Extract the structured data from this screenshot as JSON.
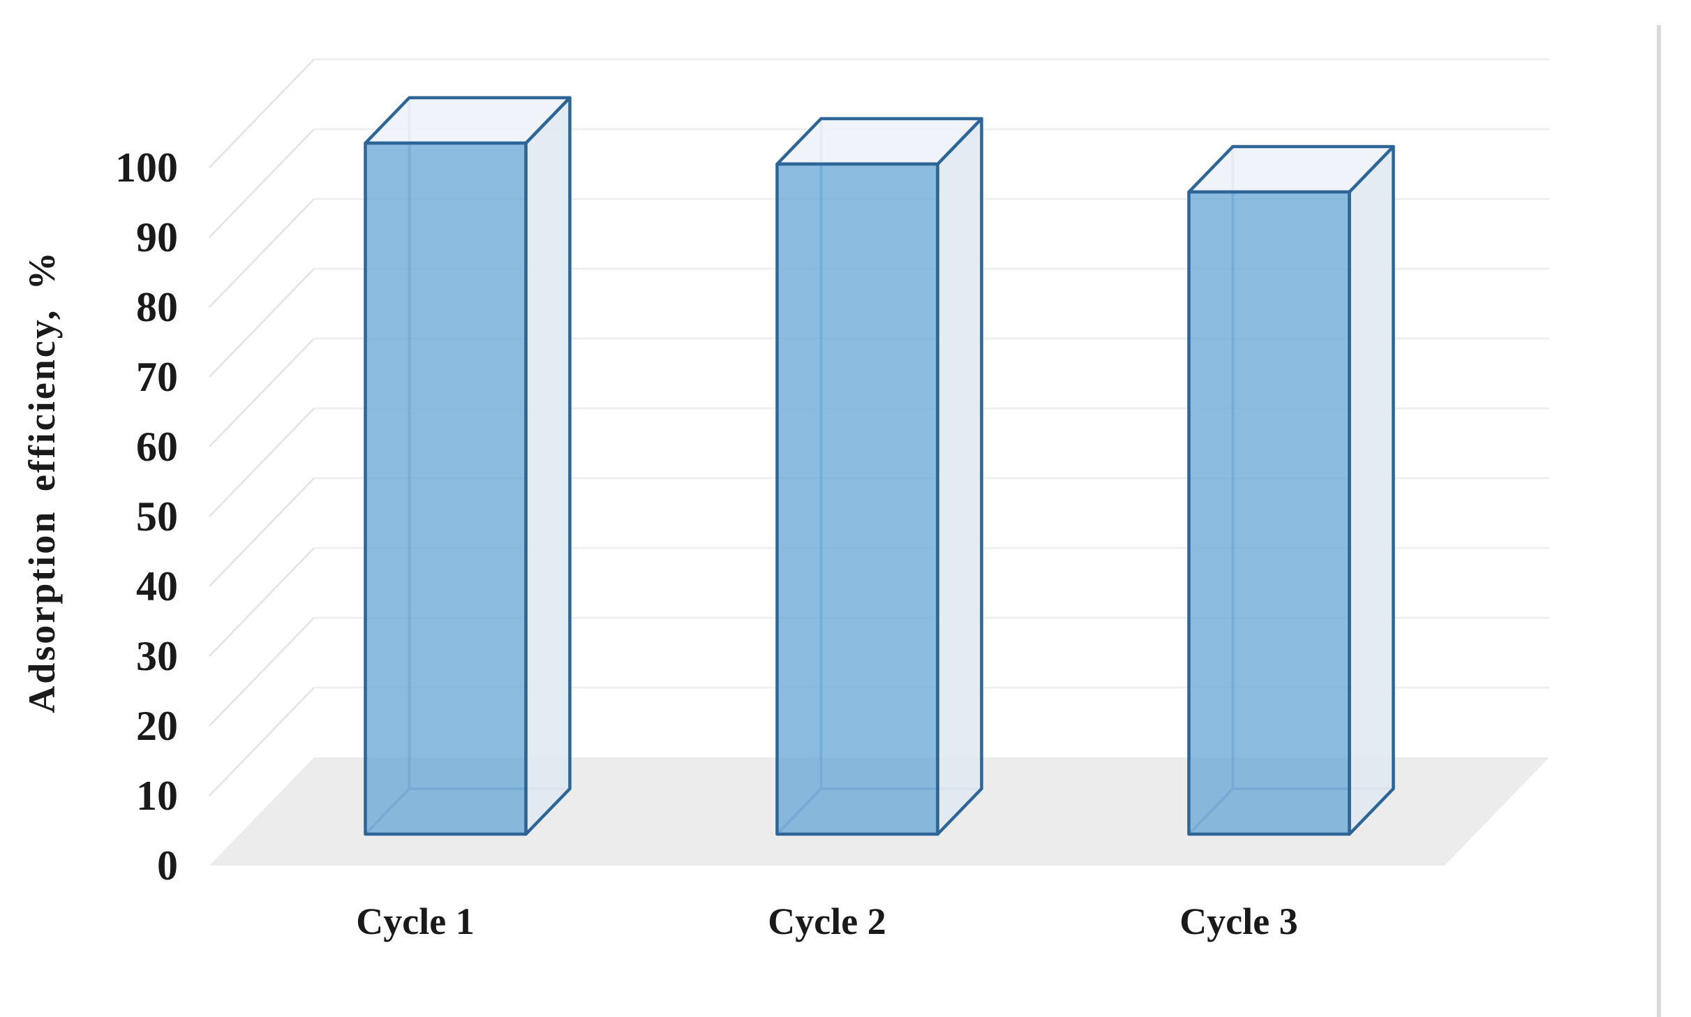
{
  "figure": {
    "background_color": "#ffffff",
    "right_border_color": "#d9d9d9",
    "text_color": "#1a1a1a"
  },
  "chart_data": {
    "type": "bar",
    "style": "3d-column",
    "title": "",
    "categories": [
      "Cycle 1",
      "Cycle 2",
      "Cycle 3"
    ],
    "values": [
      99,
      96,
      92
    ],
    "xlabel": "",
    "ylabel": "Adsorption efficiency, %",
    "ylim": [
      0,
      100
    ],
    "ytick_step": 10,
    "ytick_labels": [
      "0",
      "10",
      "20",
      "30",
      "40",
      "50",
      "60",
      "70",
      "80",
      "90",
      "100"
    ],
    "legend": "none",
    "grid": true,
    "colors": {
      "bar_front": "#6faad8",
      "bar_front_opacity": 0.8,
      "bar_side": "#e2e9f2",
      "bar_top": "#eef2f8",
      "bar_edge": "#2e6597",
      "bar_hidden_edge": "#4d82b4",
      "floor": "#ececec",
      "back_gridline": "#eeeeee",
      "left_wall_gridline": "#e3e3e3"
    }
  }
}
